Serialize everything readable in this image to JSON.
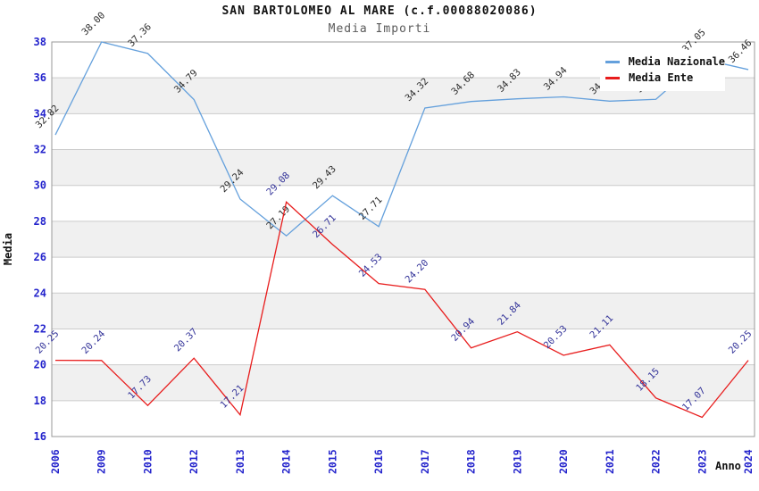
{
  "chart_data": {
    "type": "line",
    "title": "SAN BARTOLOMEO AL MARE (c.f.00088020086)",
    "subtitle": "Media Importi",
    "xlabel": "Anno",
    "ylabel": "Media",
    "categories": [
      "2006",
      "2009",
      "2010",
      "2012",
      "2013",
      "2014",
      "2015",
      "2016",
      "2017",
      "2018",
      "2019",
      "2020",
      "2021",
      "2022",
      "2023",
      "2024"
    ],
    "series": [
      {
        "name": "Media Nazionale",
        "color": "#64a0dc",
        "label_color": "#2b2b2b",
        "values": [
          32.82,
          38.0,
          37.36,
          34.79,
          29.24,
          27.19,
          29.43,
          27.71,
          34.32,
          34.68,
          34.83,
          34.94,
          34.7,
          34.8,
          37.05,
          36.46
        ],
        "labels_hidden_by_legend": [
          12,
          13
        ]
      },
      {
        "name": "Media Ente",
        "color": "#e81c1c",
        "label_color": "#333399",
        "values": [
          20.25,
          20.24,
          17.73,
          20.37,
          17.21,
          29.08,
          26.71,
          24.53,
          24.2,
          20.94,
          21.84,
          20.53,
          21.11,
          18.15,
          17.07,
          20.25
        ]
      }
    ],
    "ylim": [
      16,
      38
    ],
    "yticks": [
      16,
      18,
      20,
      22,
      24,
      26,
      28,
      30,
      32,
      34,
      36,
      38
    ],
    "grid": true,
    "legend_position": "top-right",
    "band_color": "#f0f0f0",
    "grid_color": "#cccccc",
    "border_color": "#999999",
    "tick_label_color": "#2424cc"
  }
}
